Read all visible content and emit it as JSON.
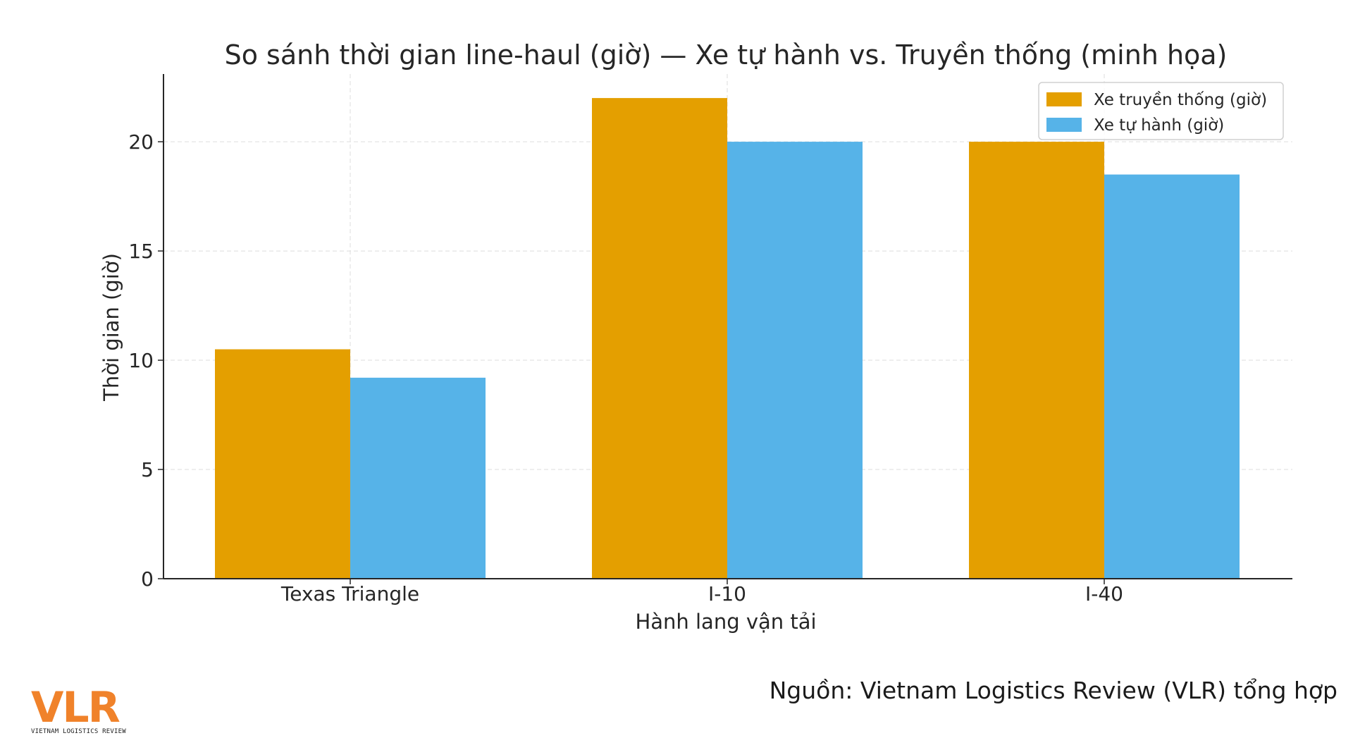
{
  "chart_data": {
    "type": "bar",
    "title": "So sánh thời gian line-haul (giờ) — Xe tự hành vs. Truyền thống (minh họa)",
    "xlabel": "Hành lang vận tải",
    "ylabel": "Thời gian (giờ)",
    "categories": [
      "Texas Triangle",
      "I-10",
      "I-40"
    ],
    "series": [
      {
        "name": "Xe truyền thống (giờ)",
        "values": [
          10.5,
          22,
          20
        ],
        "color": "#e49f00"
      },
      {
        "name": "Xe tự hành (giờ)",
        "values": [
          9.2,
          20,
          18.5
        ],
        "color": "#56b3e8"
      }
    ],
    "ylim": [
      0,
      23.1
    ],
    "yticks": [
      "0",
      "5",
      "10",
      "15",
      "20"
    ],
    "grid": true,
    "legend_position": "top-right"
  },
  "footer": {
    "source": "Nguồn: Vietnam Logistics Review (VLR) tổng hợp"
  },
  "logo": {
    "letters": "VLR",
    "tagline": "VIETNAM LOGISTICS REVIEW",
    "color": "#f0822a"
  }
}
